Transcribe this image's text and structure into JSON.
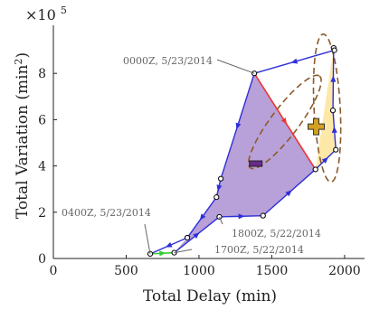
{
  "chart_data": {
    "type": "line",
    "xlabel": "Total Delay (min)",
    "ylabel": "Total Variation (min²)",
    "y_multiplier": "×10⁵",
    "y_multiplier_base": "×10",
    "y_multiplier_exp": "5",
    "xlim": [
      0,
      2100
    ],
    "ylim": [
      0,
      1000000
    ],
    "xticks": [
      0,
      500,
      1000,
      1500,
      2000
    ],
    "yticks": [
      0,
      200000,
      400000,
      600000,
      800000
    ],
    "xtick_labels": [
      "0",
      "500",
      "1000",
      "1500",
      "2000"
    ],
    "ytick_labels": [
      "0",
      "2",
      "4",
      "6",
      "8"
    ],
    "grid": false,
    "colors": {
      "path": "#2f2fd8",
      "neg_fill": "#b8a0d8",
      "pos_fill": "#fde8a8",
      "ellipse": "#8b5a2b",
      "green_segment": "#33cc33",
      "red_segment": "#ee3333",
      "minus_sign": "#6a2a8a",
      "plus_sign": "#d4a020",
      "annotation": "#666666"
    },
    "points": [
      {
        "x": 830,
        "y": 25000
      },
      {
        "x": 1140,
        "y": 180000
      },
      {
        "x": 1440,
        "y": 185000
      },
      {
        "x": 1800,
        "y": 385000
      },
      {
        "x": 1940,
        "y": 470000
      },
      {
        "x": 1920,
        "y": 640000
      },
      {
        "x": 1925,
        "y": 910000
      },
      {
        "x": 1930,
        "y": 900000
      },
      {
        "x": 1380,
        "y": 800000
      },
      {
        "x": 1150,
        "y": 345000
      },
      {
        "x": 1120,
        "y": 265000
      },
      {
        "x": 920,
        "y": 90000
      },
      {
        "x": 665,
        "y": 20000
      }
    ],
    "negative_region": [
      {
        "x": 830,
        "y": 25000
      },
      {
        "x": 1140,
        "y": 180000
      },
      {
        "x": 1440,
        "y": 185000
      },
      {
        "x": 1800,
        "y": 385000
      },
      {
        "x": 1380,
        "y": 800000
      },
      {
        "x": 1150,
        "y": 345000
      },
      {
        "x": 1120,
        "y": 265000
      },
      {
        "x": 920,
        "y": 90000
      }
    ],
    "positive_region": [
      {
        "x": 1800,
        "y": 385000
      },
      {
        "x": 1940,
        "y": 470000
      },
      {
        "x": 1920,
        "y": 640000
      },
      {
        "x": 1925,
        "y": 910000
      }
    ],
    "red_segment": [
      {
        "x": 1380,
        "y": 800000
      },
      {
        "x": 1800,
        "y": 385000
      }
    ],
    "green_segment": [
      {
        "x": 665,
        "y": 20000
      },
      {
        "x": 830,
        "y": 25000
      }
    ],
    "ellipses": [
      {
        "cx": 1590,
        "cy": 590000,
        "rx_data": 395,
        "ry_data": 60000,
        "angle_deg": 53
      },
      {
        "cx": 1880,
        "cy": 650000,
        "rx_data": 90,
        "ry_data": 320000,
        "angle_deg": 3
      }
    ],
    "markers": [
      {
        "label": "−",
        "x": 1390,
        "y": 410000
      },
      {
        "label": "+",
        "x": 1805,
        "y": 570000
      }
    ],
    "annotations": [
      {
        "text": "0000Z, 5/23/2014",
        "x": 1380,
        "y": 800000
      },
      {
        "text": "0400Z, 5/23/2014",
        "x": 665,
        "y": 20000
      },
      {
        "text": "1800Z, 5/22/2014",
        "x": 1140,
        "y": 180000
      },
      {
        "text": "1700Z, 5/22/2014",
        "x": 830,
        "y": 25000
      }
    ]
  }
}
